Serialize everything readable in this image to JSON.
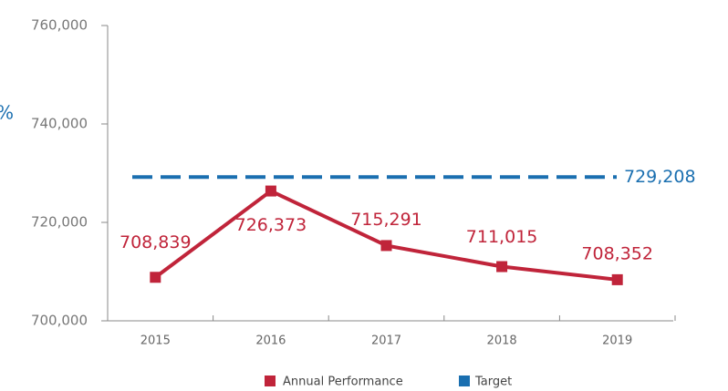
{
  "chart_data": {
    "type": "line",
    "annotation": "%",
    "categories": [
      "2015",
      "2016",
      "2017",
      "2018",
      "2019"
    ],
    "series": [
      {
        "name": "Annual Performance",
        "color": "#c0243a",
        "values": [
          708839,
          726373,
          715291,
          711015,
          708352
        ],
        "value_labels": [
          "708,839",
          "726,373",
          "715,291",
          "711,015",
          "708,352"
        ]
      }
    ],
    "target": {
      "name": "Target",
      "color": "#1a6fb0",
      "value": 729208,
      "value_label": "729,208"
    },
    "ylim": [
      700000,
      760000
    ],
    "yticks": [
      {
        "value": 700000,
        "label": "700,000"
      },
      {
        "value": 720000,
        "label": "720,000"
      },
      {
        "value": 740000,
        "label": "740,000"
      },
      {
        "value": 760000,
        "label": "760,000"
      }
    ],
    "grid": false
  }
}
